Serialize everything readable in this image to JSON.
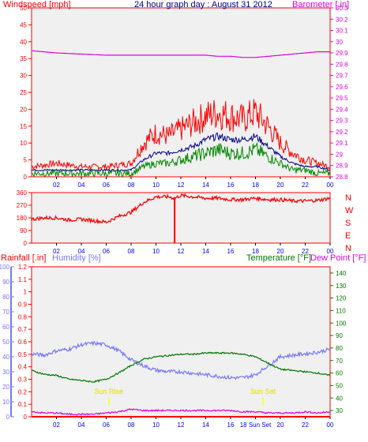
{
  "title": "24 hour graph day : August 31 2012",
  "colors": {
    "background": "#f0f0f0",
    "wind": "#ff0000",
    "wind_avg": "#000088",
    "wind_green": "#008800",
    "barometer": "#dd00dd",
    "humidity": "#7777ff",
    "temperature": "#007700",
    "dewpoint": "#dd00dd",
    "rain": "#ff0000",
    "sun": "#ffff00",
    "axis_blue": "#0000ff"
  },
  "x_hour_labels": [
    "02",
    "04",
    "06",
    "08",
    "10",
    "12",
    "14",
    "16",
    "18",
    "20",
    "22",
    "00"
  ],
  "x_hour_labels_bottom": [
    "02",
    "04",
    "06",
    "08",
    "10",
    "12",
    "14",
    "16",
    "18 Sun Set",
    "20",
    "22",
    "00"
  ],
  "chart_data": [
    {
      "type": "line",
      "title": "Windspeed [mph] / Barometer [.in]",
      "ylabel_left": "Windspeed [mph]",
      "ylabel_right": "Barometer [.in]",
      "ylim_left": [
        0,
        50
      ],
      "ylim_right": [
        28.8,
        30.3
      ],
      "yticks_left": [
        "0",
        "5",
        "10",
        "15",
        "20",
        "25",
        "30",
        "35",
        "40",
        "45",
        "50"
      ],
      "yticks_right": [
        "28.8",
        "28.9",
        "29",
        "29.1",
        "29.2",
        "29.3",
        "29.4",
        "29.5",
        "29.6",
        "29.7",
        "29.8",
        "29.9",
        "30",
        "30.1",
        "30.2",
        "30.3"
      ],
      "x": [
        0,
        2,
        4,
        6,
        8,
        9,
        10,
        11,
        12,
        13,
        14,
        15,
        16,
        17,
        18,
        19,
        20,
        21,
        22,
        23,
        24
      ],
      "series": [
        {
          "key": "gust",
          "values": [
            3,
            4,
            3,
            3,
            4,
            10,
            13,
            12,
            14,
            16,
            18,
            19,
            18,
            17,
            19,
            15,
            10,
            7,
            5,
            4,
            3
          ]
        },
        {
          "key": "avg",
          "values": [
            2,
            2,
            2,
            2,
            2,
            5,
            7,
            7,
            8,
            9,
            11,
            12,
            11,
            11,
            12,
            9,
            6,
            4,
            3,
            3,
            2
          ]
        },
        {
          "key": "low",
          "values": [
            1,
            1,
            1,
            1,
            1,
            3,
            4,
            4,
            5,
            6,
            7,
            8,
            7,
            7,
            8,
            6,
            4,
            2,
            2,
            1,
            1
          ]
        },
        {
          "key": "barometer",
          "values": [
            29.92,
            29.9,
            29.89,
            29.88,
            29.88,
            29.88,
            29.88,
            29.88,
            29.88,
            29.88,
            29.88,
            29.87,
            29.87,
            29.86,
            29.86,
            29.87,
            29.88,
            29.89,
            29.9,
            29.91,
            29.91
          ]
        }
      ]
    },
    {
      "type": "line",
      "title": "Wind Direction",
      "yticks": [
        "0",
        "90",
        "180",
        "270",
        "360"
      ],
      "compass": [
        "N",
        "W",
        "S",
        "E",
        "N"
      ],
      "ylim": [
        0,
        360
      ],
      "x": [
        0,
        1,
        2,
        3,
        4,
        5,
        6,
        7,
        8,
        9,
        10,
        11,
        11.5,
        12,
        13,
        14,
        15,
        16,
        17,
        18,
        19,
        20,
        21,
        22,
        23,
        24
      ],
      "values": [
        170,
        180,
        180,
        165,
        170,
        160,
        150,
        190,
        220,
        290,
        330,
        330,
        320,
        340,
        330,
        320,
        320,
        310,
        310,
        320,
        310,
        310,
        300,
        300,
        305,
        320
      ],
      "spike": {
        "x": 11.5,
        "value": 0
      }
    },
    {
      "type": "line",
      "title": "Rainfall / Humidity / Temperature / Dew Point",
      "label_rain": "Rainfall [.in]",
      "label_humidity": "Humidity [%]",
      "label_temperature": "Temperature [°F]",
      "label_dewpoint": "Dew Point [°F]",
      "yticks_humidity": [
        "0",
        "10",
        "20",
        "30",
        "40",
        "50",
        "60",
        "70",
        "80",
        "90",
        "100"
      ],
      "yticks_rain": [
        "0",
        "0.1",
        "0.2",
        "0.3",
        "0.4",
        "0.5",
        "0.6",
        "0.7",
        "0.8",
        "0.9",
        "1",
        "1.1",
        "1.2"
      ],
      "yticks_temp": [
        "30",
        "40",
        "50",
        "60",
        "70",
        "80",
        "90",
        "100",
        "110",
        "120",
        "130",
        "140"
      ],
      "ylim_humidity": [
        0,
        100
      ],
      "ylim_temp": [
        25,
        145
      ],
      "x": [
        0,
        1,
        2,
        3,
        4,
        5,
        6,
        7,
        8,
        9,
        10,
        11,
        12,
        13,
        14,
        15,
        16,
        17,
        18,
        19,
        20,
        21,
        22,
        23,
        24
      ],
      "series": [
        {
          "key": "humidity",
          "values": [
            42,
            41,
            44,
            45,
            48,
            49,
            48,
            44,
            38,
            34,
            31,
            30,
            30,
            29,
            28,
            27,
            26,
            26,
            28,
            34,
            40,
            41,
            42,
            43,
            45
          ]
        },
        {
          "key": "temperature",
          "values": [
            62,
            59,
            58,
            55,
            54,
            53,
            55,
            60,
            66,
            71,
            73,
            74,
            75,
            75,
            76,
            76,
            76,
            75,
            73,
            68,
            63,
            62,
            61,
            60,
            58
          ]
        },
        {
          "key": "dewpoint",
          "values": [
            29,
            28,
            28,
            27,
            27,
            27,
            28,
            29,
            31,
            30,
            30,
            30,
            30,
            30,
            30,
            30,
            30,
            29,
            29,
            28,
            28,
            28,
            29,
            28,
            29
          ]
        },
        {
          "key": "rain",
          "values": [
            0,
            0,
            0,
            0,
            0,
            0,
            0,
            0,
            0,
            0,
            0,
            0,
            0,
            0,
            0,
            0,
            0,
            0,
            0,
            0,
            0,
            0,
            0,
            0,
            0
          ]
        }
      ],
      "sun_rise": {
        "x": 6.2,
        "label": "Sun Rise"
      },
      "sun_set": {
        "x": 18.6,
        "label": "Sun Set"
      }
    }
  ]
}
